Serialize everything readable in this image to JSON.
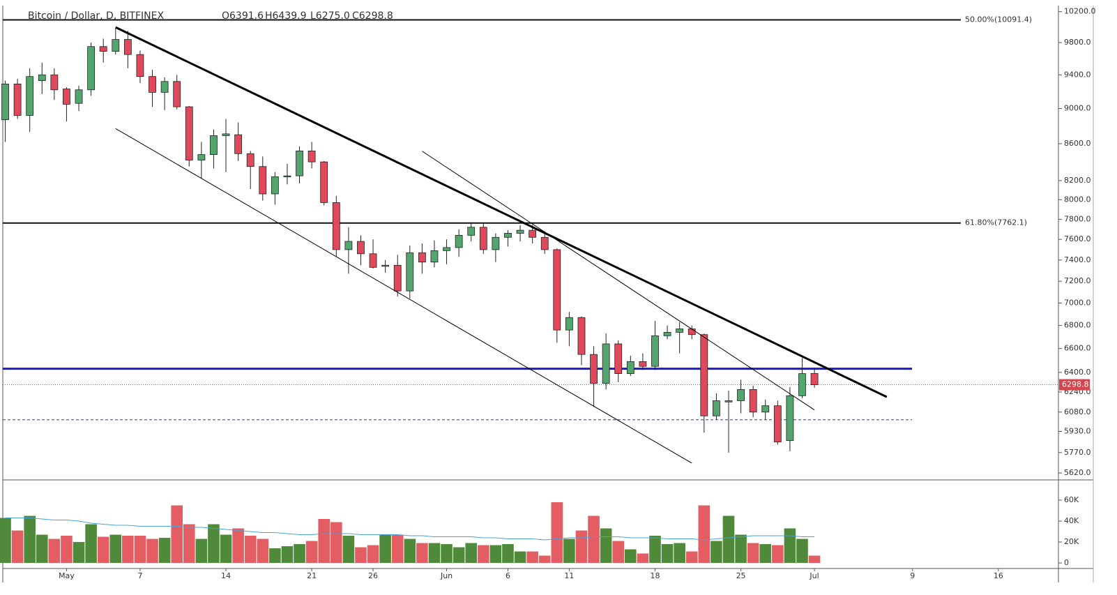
{
  "chart_data": [
    {
      "type": "candlestick",
      "title": "Bitcoin / Dollar, D, BITFINEX",
      "legend_values": [
        "O6391.6",
        "H6439.9",
        "L6275.0",
        "C6298.8"
      ],
      "log_scale": true,
      "up_color": "#53a46d",
      "down_color": "#e0495b",
      "outline_color": "#222222",
      "xlim": [
        -0.2,
        85.9
      ],
      "ylim": [
        5580,
        10280
      ],
      "yticks": [
        {
          "value": 10200,
          "label": "10200.0"
        },
        {
          "value": 9800,
          "label": "9800.0"
        },
        {
          "value": 9400,
          "label": "9400.0"
        },
        {
          "value": 9000,
          "label": "9000.0"
        },
        {
          "value": 8600,
          "label": "8600.0"
        },
        {
          "value": 8200,
          "label": "8200.0"
        },
        {
          "value": 8000,
          "label": "8000.0"
        },
        {
          "value": 7800,
          "label": "7800.0"
        },
        {
          "value": 7600,
          "label": "7600.0"
        },
        {
          "value": 7400,
          "label": "7400.0"
        },
        {
          "value": 7200,
          "label": "7200.0"
        },
        {
          "value": 7000,
          "label": "7000.0"
        },
        {
          "value": 6800,
          "label": "6800.0"
        },
        {
          "value": 6600,
          "label": "6600.0"
        },
        {
          "value": 6400,
          "label": "6400.0"
        },
        {
          "value": 6240,
          "label": "6240.0"
        },
        {
          "value": 6080,
          "label": "6080.0"
        },
        {
          "value": 5930,
          "label": "5930.0"
        },
        {
          "value": 5770,
          "label": "5770.0"
        },
        {
          "value": 5620,
          "label": "5620.0"
        }
      ],
      "xticks": [
        {
          "value": 5,
          "label": "May"
        },
        {
          "value": 11,
          "label": "7"
        },
        {
          "value": 18,
          "label": "14"
        },
        {
          "value": 25,
          "label": "21"
        },
        {
          "value": 30,
          "label": "26"
        },
        {
          "value": 36,
          "label": "Jun"
        },
        {
          "value": 41,
          "label": "6"
        },
        {
          "value": 46,
          "label": "11"
        },
        {
          "value": 53,
          "label": "18"
        },
        {
          "value": 60,
          "label": "25"
        },
        {
          "value": 66,
          "label": "Jul"
        },
        {
          "value": 74,
          "label": "9"
        },
        {
          "value": 81,
          "label": "16"
        }
      ],
      "open": [
        8870,
        9290,
        8920,
        9330,
        9400,
        9230,
        9060,
        9220,
        9750,
        9690,
        9840,
        9650,
        9380,
        9190,
        9320,
        9020,
        8420,
        8480,
        8690,
        8700,
        8490,
        8350,
        8060,
        8240,
        8250,
        8520,
        8400,
        7970,
        7500,
        7580,
        7460,
        7340,
        7350,
        7110,
        7470,
        7380,
        7490,
        7520,
        7640,
        7720,
        7500,
        7620,
        7660,
        7690,
        7620,
        7500,
        6760,
        6870,
        6550,
        6310,
        6640,
        6390,
        6490,
        6450,
        6710,
        6740,
        6770,
        6720,
        6050,
        6160,
        6170,
        6260,
        6080,
        6130,
        5860,
        6210,
        6391.6
      ],
      "high": [
        9330,
        9350,
        9480,
        9550,
        9480,
        9250,
        9270,
        9800,
        9850,
        9990,
        9950,
        9700,
        9460,
        9370,
        9400,
        9030,
        8620,
        8760,
        8880,
        8840,
        8520,
        8460,
        8290,
        8380,
        8570,
        8620,
        8410,
        8040,
        7720,
        7640,
        7600,
        7400,
        7450,
        7540,
        7560,
        7590,
        7600,
        7700,
        7770,
        7760,
        7660,
        7690,
        7740,
        7740,
        7680,
        7510,
        6920,
        6880,
        6620,
        6730,
        6670,
        6540,
        6560,
        6840,
        6800,
        6830,
        6800,
        6730,
        6230,
        6250,
        6340,
        6290,
        6180,
        6170,
        6280,
        6520,
        6439.9
      ],
      "low": [
        8620,
        8880,
        8730,
        9170,
        9100,
        8850,
        8970,
        9150,
        9550,
        9650,
        9480,
        9300,
        9020,
        8980,
        8990,
        8350,
        8220,
        8330,
        8290,
        8410,
        8110,
        7990,
        7950,
        8160,
        8170,
        8330,
        7940,
        7430,
        7270,
        7350,
        7320,
        7280,
        7060,
        7040,
        7270,
        7330,
        7360,
        7430,
        7580,
        7460,
        7380,
        7530,
        7580,
        7560,
        7460,
        6650,
        6620,
        6460,
        6120,
        6260,
        6320,
        6370,
        6420,
        6420,
        6680,
        6560,
        6680,
        5920,
        6020,
        5770,
        6070,
        6040,
        6020,
        5830,
        5780,
        6190,
        6275.0
      ],
      "close": [
        9290,
        8920,
        9380,
        9400,
        9220,
        9050,
        9220,
        9750,
        9690,
        9840,
        9650,
        9380,
        9190,
        9320,
        9020,
        8420,
        8480,
        8690,
        8710,
        8490,
        8350,
        8060,
        8240,
        8250,
        8520,
        8400,
        7970,
        7500,
        7580,
        7460,
        7330,
        7350,
        7110,
        7470,
        7380,
        7490,
        7520,
        7640,
        7720,
        7500,
        7620,
        7660,
        7690,
        7620,
        7500,
        6760,
        6870,
        6550,
        6310,
        6640,
        6390,
        6490,
        6450,
        6710,
        6740,
        6770,
        6720,
        6050,
        6170,
        6170,
        6260,
        6080,
        6130,
        5850,
        6210,
        6390,
        6298.8
      ],
      "levels": [
        {
          "price": 10091.4,
          "label": "50.00%(10091.4)",
          "color": "#111111"
        },
        {
          "price": 7762.1,
          "label": "61.80%(7762.1)",
          "color": "#111111"
        }
      ],
      "hlines": [
        {
          "price": 6430,
          "color": "#1a1ad0",
          "style": "solid"
        },
        {
          "price": 6020,
          "color": "#3030b0",
          "style": "dashed"
        }
      ],
      "last_price": 6298.8,
      "last_price_label": "6298.8",
      "last_price_color": "#d4454f",
      "trendlines": [
        {
          "start": [
            9,
            9996
          ],
          "end": [
            71.9,
            6200
          ],
          "width": 3
        },
        {
          "start": [
            9,
            8770
          ],
          "end": [
            56,
            5692
          ],
          "width": 1
        },
        {
          "start": [
            34,
            8517
          ],
          "end": [
            66,
            6097
          ],
          "width": 1
        }
      ]
    },
    {
      "type": "bar",
      "up_color": "#4f8a3a",
      "down_color": "#e35d63",
      "ma_color": "#4aa3d8",
      "ylim": [
        -5300,
        78000
      ],
      "yticks": [
        {
          "value": 60000,
          "label": "60K"
        },
        {
          "value": 40000,
          "label": "40K"
        },
        {
          "value": 20000,
          "label": "20K"
        },
        0
      ],
      "values": [
        43000,
        31000,
        45000,
        27000,
        23000,
        26000,
        20000,
        37000,
        25000,
        27000,
        26000,
        26000,
        23000,
        24000,
        55000,
        37000,
        23000,
        37000,
        27000,
        33000,
        26000,
        23000,
        14000,
        16000,
        18000,
        21000,
        42000,
        39000,
        26000,
        15000,
        17000,
        27000,
        27000,
        23000,
        19000,
        19000,
        18000,
        15000,
        19000,
        17000,
        17000,
        18000,
        11000,
        11000,
        7000,
        58000,
        23000,
        31000,
        45000,
        33000,
        21000,
        13000,
        9000,
        26000,
        18000,
        19000,
        11000,
        55000,
        21000,
        45000,
        27000,
        19000,
        18000,
        17000,
        33000,
        23000,
        7000
      ],
      "ma": [
        43000,
        43000,
        43000,
        42000,
        41000,
        41000,
        40000,
        38000,
        37000,
        36000,
        36000,
        35000,
        35000,
        35000,
        35000,
        34000,
        34000,
        33000,
        32000,
        31000,
        30000,
        29000,
        29000,
        28000,
        27000,
        27000,
        28000,
        28000,
        28000,
        27000,
        27000,
        27000,
        27000,
        26000,
        26000,
        25000,
        25000,
        25000,
        25000,
        24000,
        24000,
        23000,
        23000,
        23000,
        22000,
        23000,
        24000,
        24000,
        25000,
        25000,
        25000,
        24000,
        24000,
        24000,
        23000,
        23000,
        23000,
        22000,
        23000,
        24000,
        25000,
        26000,
        26000,
        26000,
        26000,
        25000,
        25000
      ]
    }
  ]
}
